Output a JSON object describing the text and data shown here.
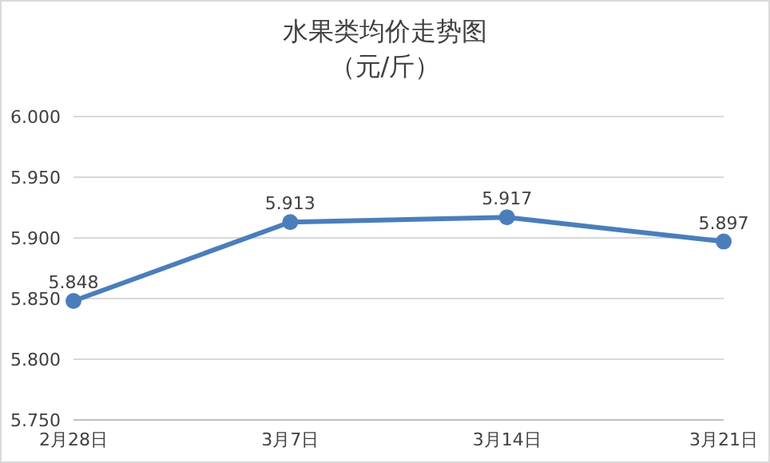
{
  "chart_data": {
    "type": "line",
    "title": "水果类均价走势图",
    "subtitle": "（元/斤）",
    "categories": [
      "2月28日",
      "3月7日",
      "3月14日",
      "3月21日"
    ],
    "series": [
      {
        "color": "#4a7ebb",
        "values": [
          5.848,
          5.913,
          5.917,
          5.897
        ]
      }
    ],
    "ylim": [
      5.75,
      6.0
    ],
    "yticks": [
      {
        "value": 5.75,
        "label": "5.750"
      },
      {
        "value": 5.8,
        "label": "5.800"
      },
      {
        "value": 5.85,
        "label": "5.850"
      },
      {
        "value": 5.9,
        "label": "5.900"
      },
      {
        "value": 5.95,
        "label": "5.950"
      },
      {
        "value": 6.0,
        "label": "6.000"
      }
    ],
    "grid": "y",
    "marker": "circle",
    "line_style": "solid",
    "data_labels": true,
    "legend": false
  }
}
